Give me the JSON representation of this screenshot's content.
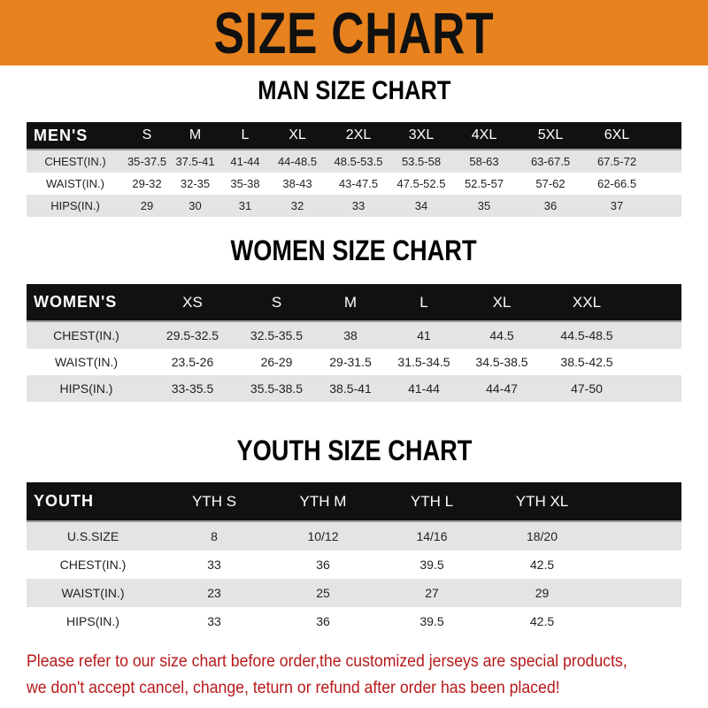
{
  "title": "SIZE CHART",
  "men": {
    "title": "MAN SIZE CHART",
    "header": [
      "MEN'S",
      "S",
      "M",
      "L",
      "XL",
      "2XL",
      "3XL",
      "4XL",
      "5XL",
      "6XL"
    ],
    "rows": [
      [
        "CHEST(IN.)",
        "35-37.5",
        "37.5-41",
        "41-44",
        "44-48.5",
        "48.5-53.5",
        "53.5-58",
        "58-63",
        "63-67.5",
        "67.5-72"
      ],
      [
        "WAIST(IN.)",
        "29-32",
        "32-35",
        "35-38",
        "38-43",
        "43-47.5",
        "47.5-52.5",
        "52.5-57",
        "57-62",
        "62-66.5"
      ],
      [
        "HIPS(IN.)",
        "29",
        "30",
        "31",
        "32",
        "33",
        "34",
        "35",
        "36",
        "37"
      ]
    ]
  },
  "women": {
    "title": "WOMEN SIZE CHART",
    "header": [
      "WOMEN'S",
      "XS",
      "S",
      "M",
      "L",
      "XL",
      "XXL"
    ],
    "rows": [
      [
        "CHEST(IN.)",
        "29.5-32.5",
        "32.5-35.5",
        "38",
        "41",
        "44.5",
        "44.5-48.5"
      ],
      [
        "WAIST(IN.)",
        "23.5-26",
        "26-29",
        "29-31.5",
        "31.5-34.5",
        "34.5-38.5",
        "38.5-42.5"
      ],
      [
        "HIPS(IN.)",
        "33-35.5",
        "35.5-38.5",
        "38.5-41",
        "41-44",
        "44-47",
        "47-50"
      ]
    ]
  },
  "youth": {
    "title": "YOUTH SIZE CHART",
    "header": [
      "YOUTH",
      "YTH S",
      "YTH M",
      "YTH L",
      "YTH XL"
    ],
    "rows": [
      [
        "U.S.SIZE",
        "8",
        "10/12",
        "14/16",
        "18/20"
      ],
      [
        "CHEST(IN.)",
        "33",
        "36",
        "39.5",
        "42.5"
      ],
      [
        "WAIST(IN.)",
        "23",
        "25",
        "27",
        "29"
      ],
      [
        "HIPS(IN.)",
        "33",
        "36",
        "39.5",
        "42.5"
      ]
    ]
  },
  "note": [
    "Please refer to our size chart before order,the customized jerseys are special products,",
    "we don't accept cancel, change, teturn or refund after order has been placed!"
  ],
  "colors": {
    "banner": "#e8821e",
    "note": "#b8191b",
    "header": "#111111"
  }
}
